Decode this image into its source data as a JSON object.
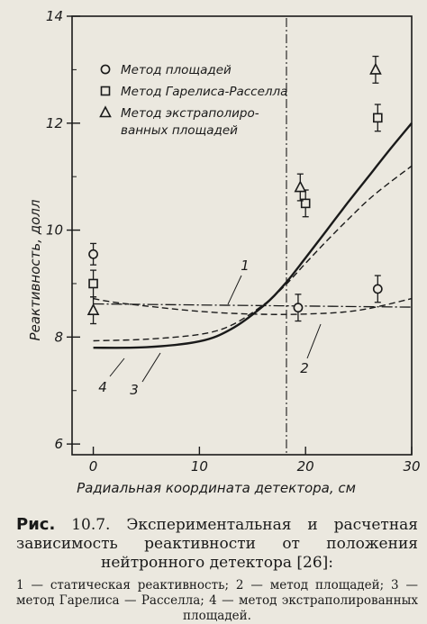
{
  "chart_data": {
    "type": "line",
    "ylabel": "Реактивность, долл",
    "xlabel": "Радиальная координата детектора, см",
    "xlim": [
      -2,
      30
    ],
    "ylim": [
      5.8,
      14
    ],
    "x_ticks": [
      0,
      10,
      20,
      30
    ],
    "y_ticks": [
      6,
      8,
      10,
      12,
      14
    ],
    "y_tick_labels": [
      "6",
      "8",
      "10",
      "12",
      "14"
    ],
    "grid": false,
    "legend_position": "top-left",
    "legend": [
      {
        "marker": "circle",
        "label": "Метод площадей"
      },
      {
        "marker": "square",
        "label": "Метод Гарелиса-Расселла"
      },
      {
        "marker": "triangle",
        "label": "Метод экстраполиро-",
        "label2": "ванных площадей"
      }
    ],
    "vertical_line_x": 18.2,
    "points": [
      {
        "series": "circle",
        "x": 0,
        "y": 9.55,
        "err": 0.2
      },
      {
        "series": "circle",
        "x": 19.3,
        "y": 8.55,
        "err": 0.25
      },
      {
        "series": "circle",
        "x": 26.8,
        "y": 8.9,
        "err": 0.25
      },
      {
        "series": "square",
        "x": 0,
        "y": 9.0,
        "err": 0.25
      },
      {
        "series": "square",
        "x": 20.0,
        "y": 10.5,
        "err": 0.25
      },
      {
        "series": "square",
        "x": 26.8,
        "y": 12.1,
        "err": 0.25
      },
      {
        "series": "triangle",
        "x": 0,
        "y": 8.5,
        "err": 0.25
      },
      {
        "series": "triangle",
        "x": 19.5,
        "y": 10.8,
        "err": 0.25
      },
      {
        "series": "triangle",
        "x": 26.6,
        "y": 13.0,
        "err": 0.25
      }
    ],
    "series": [
      {
        "label": "1",
        "style": "dash-dot",
        "x": [
          0,
          5,
          10,
          15,
          20,
          25,
          30
        ],
        "y": [
          8.62,
          8.61,
          8.6,
          8.59,
          8.58,
          8.57,
          8.56
        ]
      },
      {
        "label": "2",
        "style": "dashed",
        "x": [
          0,
          2,
          5,
          10,
          15,
          20,
          25,
          30
        ],
        "y": [
          8.72,
          8.65,
          8.58,
          8.48,
          8.43,
          8.43,
          8.5,
          8.72
        ]
      },
      {
        "label": "3",
        "style": "dashed",
        "x": [
          0,
          5,
          10,
          13,
          16,
          18,
          20,
          22,
          24,
          26,
          28,
          30
        ],
        "y": [
          7.93,
          7.96,
          8.05,
          8.22,
          8.6,
          8.95,
          9.38,
          9.8,
          10.2,
          10.58,
          10.9,
          11.2
        ]
      },
      {
        "label": "4",
        "style": "solid",
        "x": [
          0,
          5,
          10,
          13,
          16,
          18,
          20,
          22,
          24,
          26,
          28,
          30
        ],
        "y": [
          7.8,
          7.81,
          7.92,
          8.15,
          8.58,
          8.98,
          9.48,
          10.0,
          10.52,
          11.02,
          11.52,
          12.0
        ]
      }
    ]
  },
  "caption": {
    "lead": "Рис.",
    "title": "10.7. Экспериментальная и расчетная зависимость реактивности от положения нейтронного детектора [26]:",
    "notes": "1 — статическая реактивность; 2 — метод площадей; 3 — метод Гарелиса — Расселла; 4 — метод экстраполированных площадей."
  }
}
